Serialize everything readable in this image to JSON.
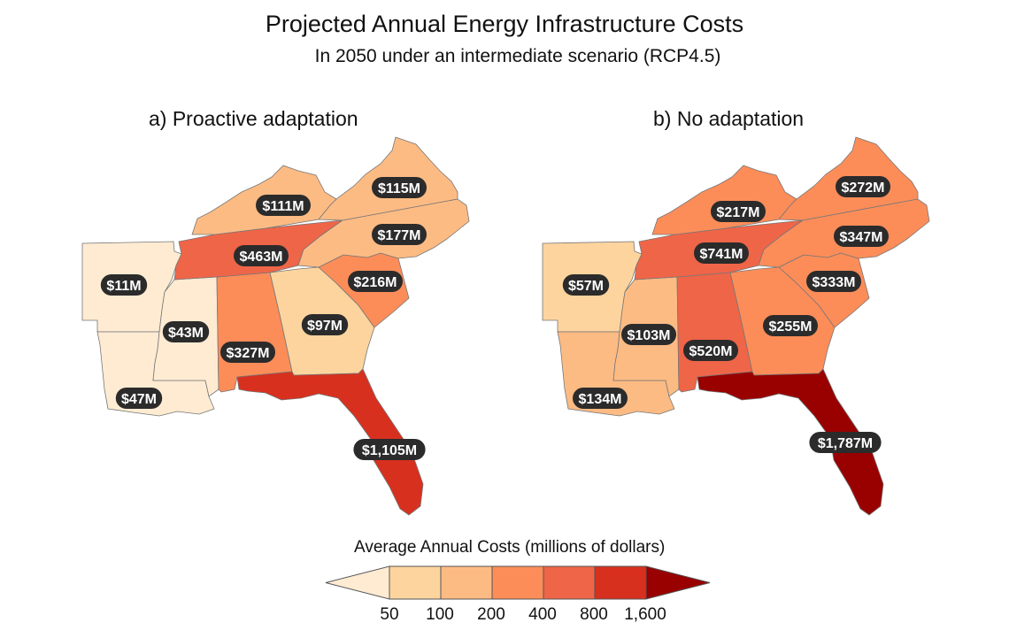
{
  "title": "Projected Annual Energy Infrastructure Costs",
  "subtitle": "In 2050 under an intermediate scenario (RCP4.5)",
  "panels": [
    {
      "title": "a) Proactive adaptation",
      "states": {
        "AR": {
          "value": 11,
          "label": "$11M"
        },
        "MS": {
          "value": 43,
          "label": "$43M"
        },
        "LA": {
          "value": 47,
          "label": "$47M"
        },
        "AL": {
          "value": 327,
          "label": "$327M"
        },
        "GA": {
          "value": 97,
          "label": "$97M"
        },
        "SC": {
          "value": 216,
          "label": "$216M"
        },
        "TN": {
          "value": 463,
          "label": "$463M"
        },
        "KY": {
          "value": 111,
          "label": "$111M"
        },
        "VA": {
          "value": 115,
          "label": "$115M"
        },
        "NC": {
          "value": 177,
          "label": "$177M"
        },
        "FL": {
          "value": 1105,
          "label": "$1,105M"
        }
      }
    },
    {
      "title": "b) No adaptation",
      "states": {
        "AR": {
          "value": 57,
          "label": "$57M"
        },
        "MS": {
          "value": 103,
          "label": "$103M"
        },
        "LA": {
          "value": 134,
          "label": "$134M"
        },
        "AL": {
          "value": 520,
          "label": "$520M"
        },
        "GA": {
          "value": 255,
          "label": "$255M"
        },
        "SC": {
          "value": 333,
          "label": "$333M"
        },
        "TN": {
          "value": 741,
          "label": "$741M"
        },
        "KY": {
          "value": 217,
          "label": "$217M"
        },
        "VA": {
          "value": 272,
          "label": "$272M"
        },
        "NC": {
          "value": 347,
          "label": "$347M"
        },
        "FL": {
          "value": 1787,
          "label": "$1,787M"
        }
      }
    }
  ],
  "legend": {
    "title": "Average Annual Costs (millions of dollars)",
    "breaks": [
      50,
      100,
      200,
      400,
      800,
      1600
    ],
    "tick_labels": [
      "50",
      "100",
      "200",
      "400",
      "800",
      "1,600"
    ],
    "colors": [
      "#feebd2",
      "#fdd49e",
      "#fdbb84",
      "#fc8d59",
      "#ef6548",
      "#d7301f",
      "#990000"
    ]
  }
}
